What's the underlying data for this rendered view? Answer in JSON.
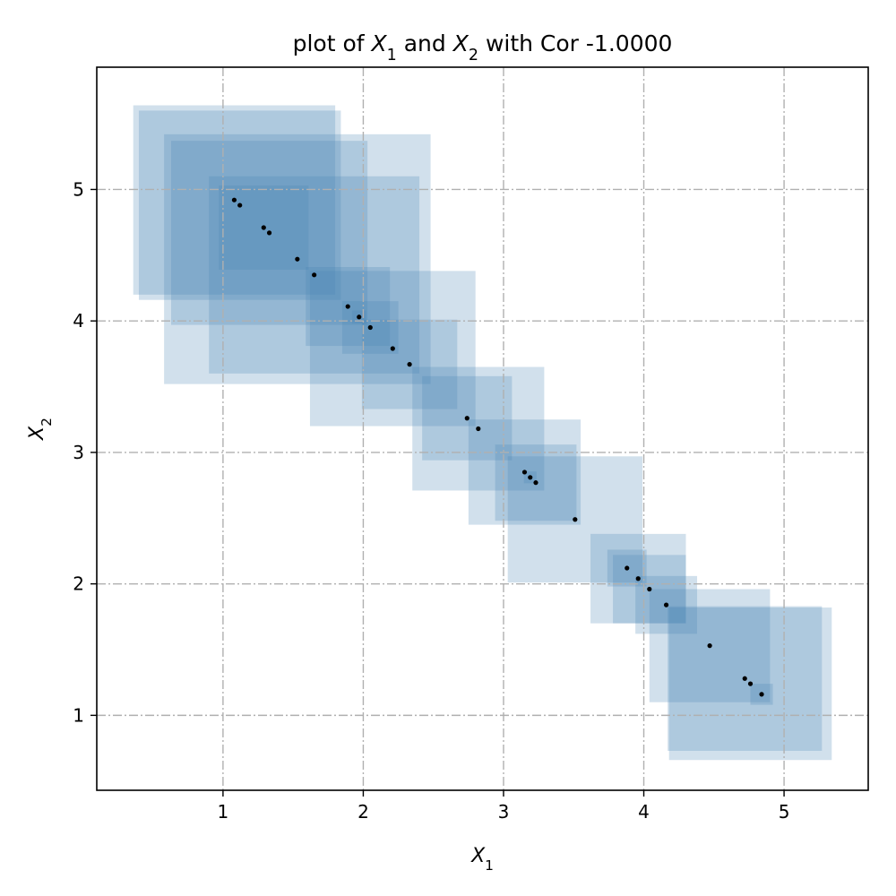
{
  "chart_data": {
    "type": "scatter",
    "title": {
      "prefix": "plot of ",
      "x_var": "X",
      "x_sub": "1",
      "middle": " and ",
      "y_var": "X",
      "y_sub": "2",
      "suffix": " with Cor -1.0000"
    },
    "xlabel": {
      "var": "X",
      "sub": "1"
    },
    "ylabel": {
      "var": "X",
      "sub": "2"
    },
    "xlim": [
      0.1,
      5.6
    ],
    "ylim": [
      0.43,
      5.93
    ],
    "xticks": [
      1,
      2,
      3,
      4,
      5
    ],
    "xtick_labels": [
      "1",
      "2",
      "3",
      "4",
      "5"
    ],
    "yticks": [
      1,
      2,
      3,
      4,
      5
    ],
    "ytick_labels": [
      "1",
      "2",
      "3",
      "4",
      "5"
    ],
    "grid": true,
    "legend": "none",
    "point_color": "#000000",
    "box_color": "#4682b4",
    "box_opacity": 0.25,
    "points": [
      {
        "x": 1.08,
        "y": 4.92,
        "half_width": 0.72
      },
      {
        "x": 1.12,
        "y": 4.88,
        "half_width": 0.72
      },
      {
        "x": 1.29,
        "y": 4.71,
        "half_width": 0.32
      },
      {
        "x": 1.33,
        "y": 4.67,
        "half_width": 0.7
      },
      {
        "x": 1.53,
        "y": 4.47,
        "half_width": 0.95
      },
      {
        "x": 1.65,
        "y": 4.35,
        "half_width": 0.75
      },
      {
        "x": 1.89,
        "y": 4.11,
        "half_width": 0.3
      },
      {
        "x": 1.97,
        "y": 4.03,
        "half_width": 0.05
      },
      {
        "x": 2.05,
        "y": 3.95,
        "half_width": 0.2
      },
      {
        "x": 2.21,
        "y": 3.79,
        "half_width": 0.59
      },
      {
        "x": 2.33,
        "y": 3.67,
        "half_width": 0.34
      },
      {
        "x": 2.74,
        "y": 3.26,
        "half_width": 0.32
      },
      {
        "x": 2.82,
        "y": 3.18,
        "half_width": 0.47
      },
      {
        "x": 3.15,
        "y": 2.85,
        "half_width": 0.4
      },
      {
        "x": 3.19,
        "y": 2.81,
        "half_width": 0.045
      },
      {
        "x": 3.23,
        "y": 2.77,
        "half_width": 0.29
      },
      {
        "x": 3.51,
        "y": 2.49,
        "half_width": 0.48
      },
      {
        "x": 3.88,
        "y": 2.12,
        "half_width": 0.14
      },
      {
        "x": 3.96,
        "y": 2.04,
        "half_width": 0.34
      },
      {
        "x": 4.04,
        "y": 1.96,
        "half_width": 0.26
      },
      {
        "x": 4.16,
        "y": 1.84,
        "half_width": 0.22
      },
      {
        "x": 4.47,
        "y": 1.53,
        "half_width": 0.43
      },
      {
        "x": 4.72,
        "y": 1.28,
        "half_width": 0.55
      },
      {
        "x": 4.76,
        "y": 1.24,
        "half_width": 0.58
      },
      {
        "x": 4.84,
        "y": 1.16,
        "half_width": 0.08
      }
    ]
  }
}
